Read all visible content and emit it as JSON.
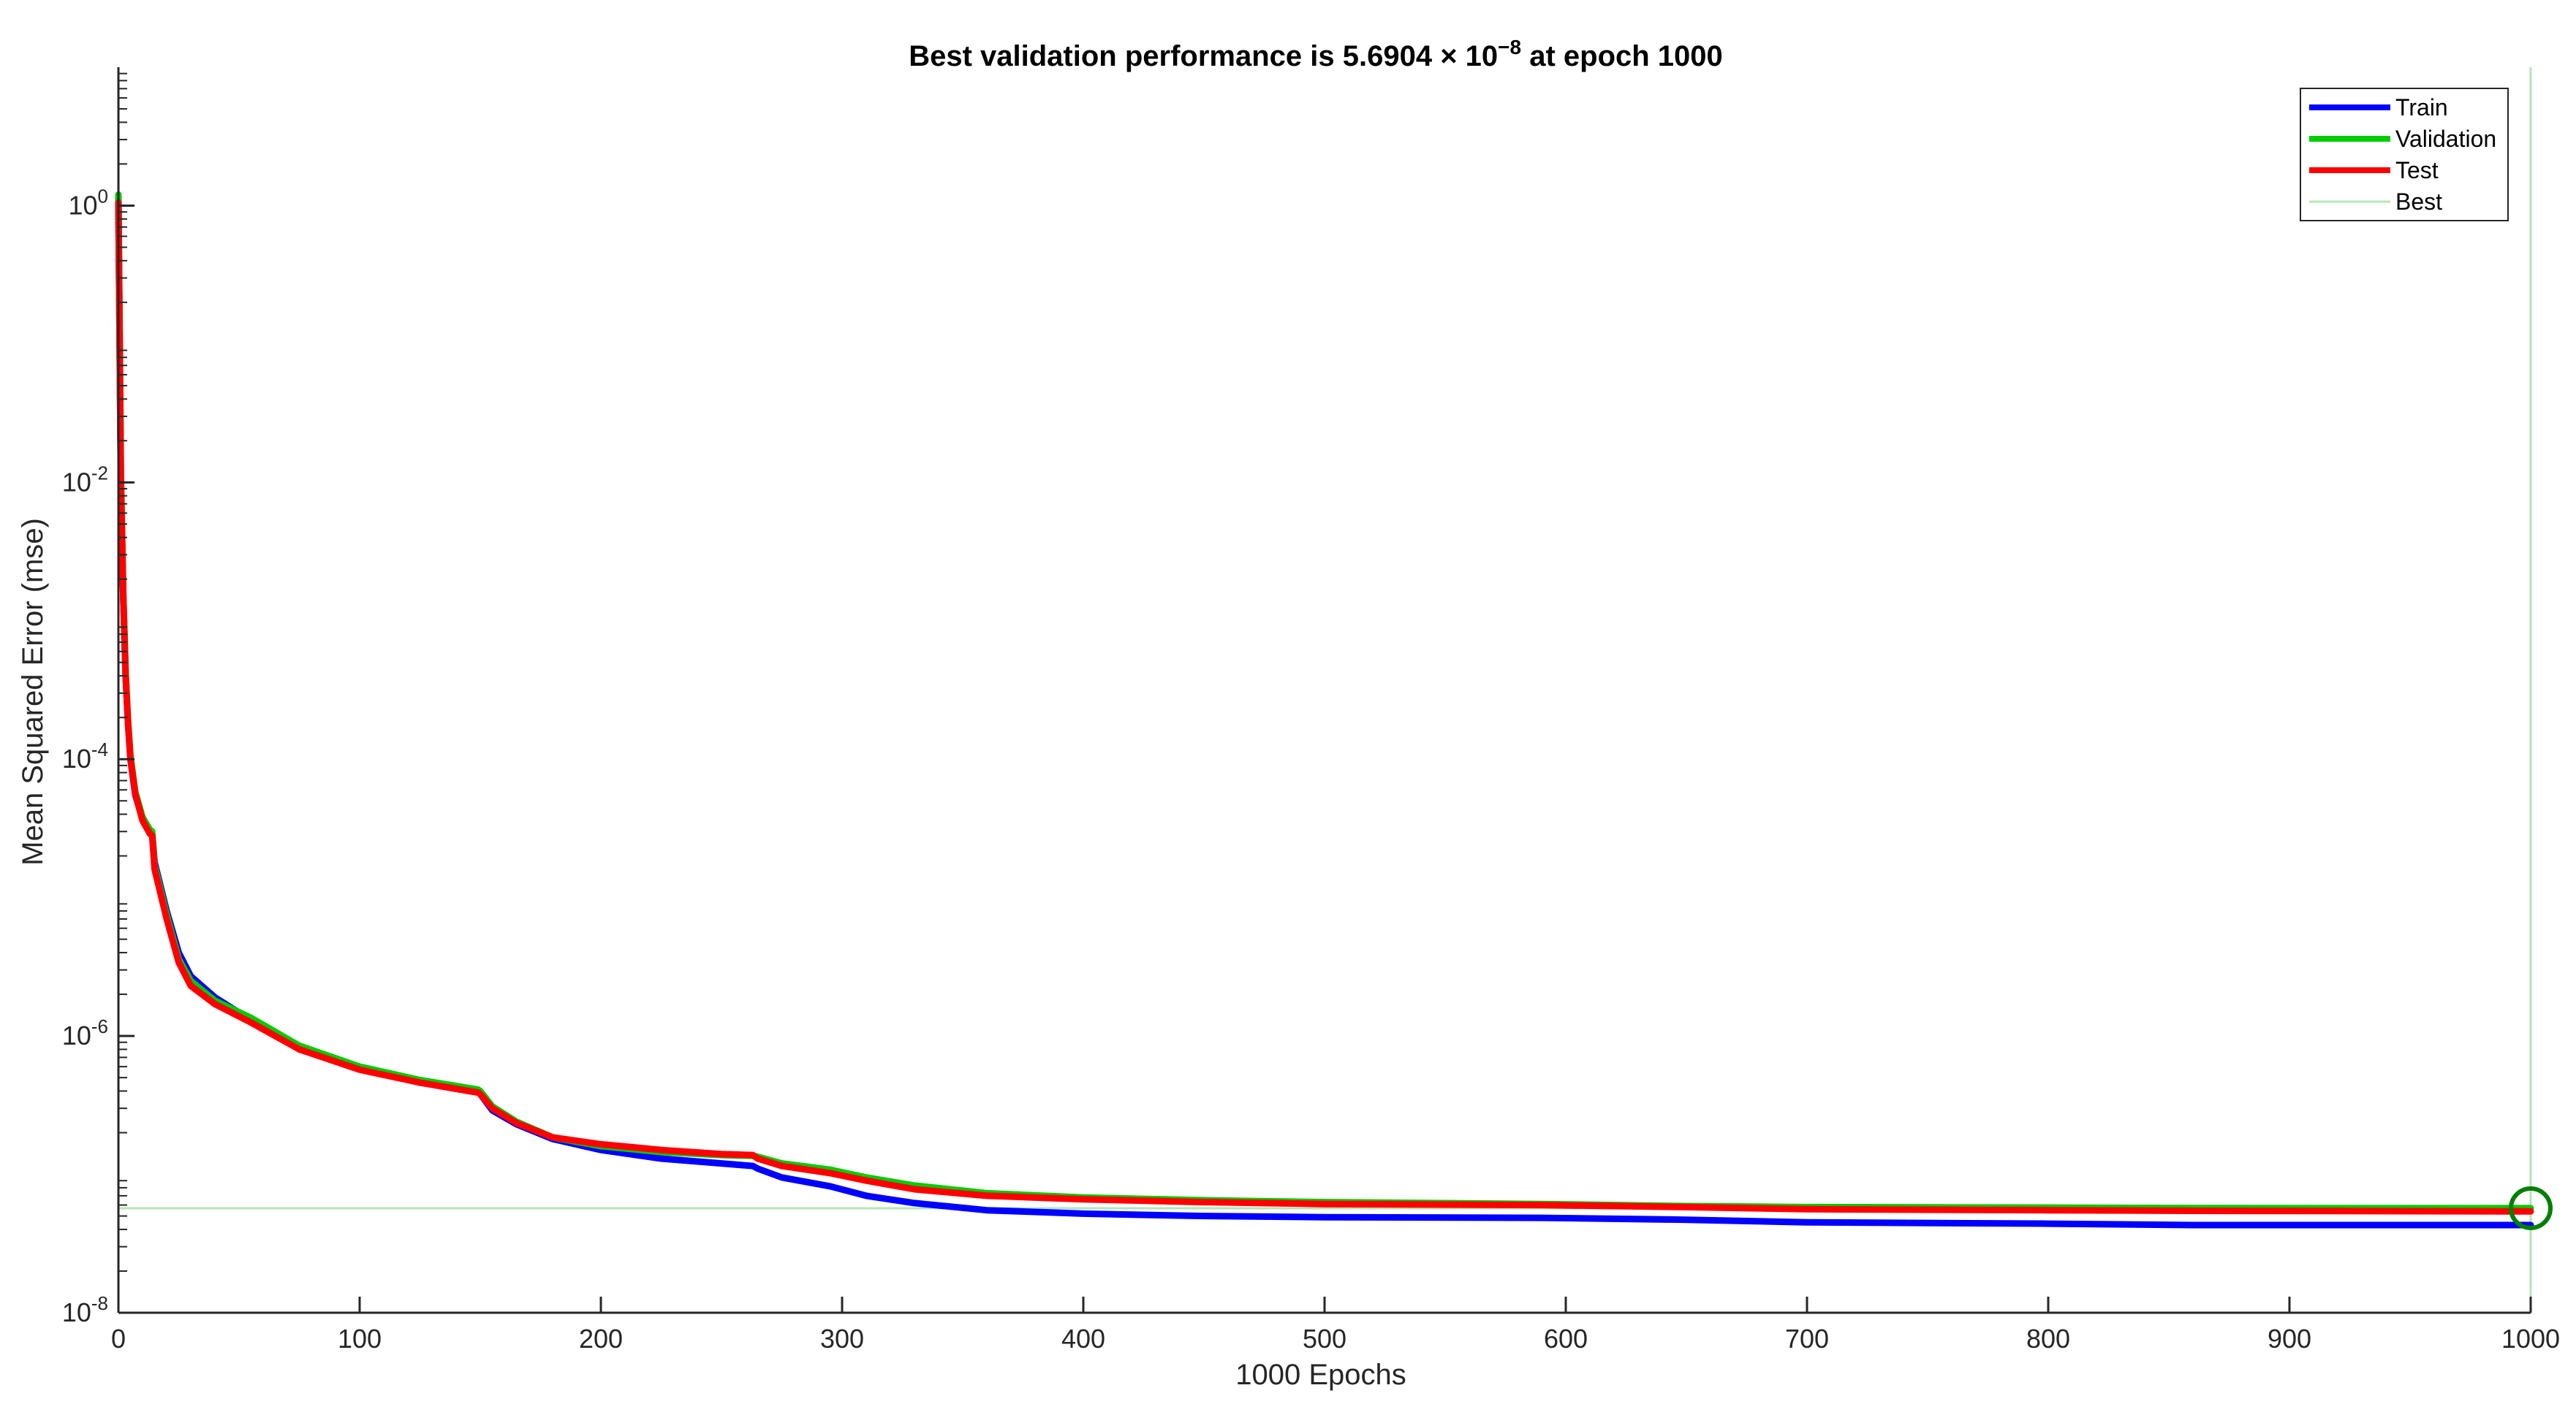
{
  "chart_data": {
    "type": "line",
    "title": {
      "prefix": "Best validation performance is 5.6904 × 10",
      "superscript": "−8",
      "suffix": " at epoch 1000"
    },
    "xlabel": "1000 Epochs",
    "ylabel": "Mean Squared Error  (mse)",
    "xlim": [
      0,
      1000
    ],
    "ylim": [
      1e-08,
      10
    ],
    "yscale": "log",
    "grid": false,
    "legend_position": "top-right",
    "x_ticks": [
      0,
      100,
      200,
      300,
      400,
      500,
      600,
      700,
      800,
      900,
      1000
    ],
    "y_ticks": [
      {
        "value": 1,
        "base": "10",
        "exp": "0"
      },
      {
        "value": 0.01,
        "base": "10",
        "exp": "-2"
      },
      {
        "value": 0.0001,
        "base": "10",
        "exp": "-4"
      },
      {
        "value": 1e-06,
        "base": "10",
        "exp": "-6"
      },
      {
        "value": 1e-08,
        "base": "10",
        "exp": "-8"
      }
    ],
    "series": [
      {
        "name": "Train",
        "color": "#0000ff",
        "x": [
          0,
          1,
          2,
          3,
          4,
          5,
          7,
          10,
          13,
          14,
          15,
          20,
          25,
          30,
          40,
          55,
          75,
          100,
          125,
          149,
          150,
          155,
          165,
          180,
          200,
          225,
          250,
          263,
          265,
          275,
          295,
          310,
          330,
          360,
          400,
          450,
          500,
          590,
          650,
          700,
          800,
          860,
          1000
        ],
        "y": [
          1.1,
          0.01,
          0.0015,
          0.0004,
          0.00018,
          0.0001,
          5.5e-05,
          3.7e-05,
          3e-05,
          2.9e-05,
          1.8e-05,
          8e-06,
          4e-06,
          2.7e-06,
          1.9e-06,
          1.3e-06,
          8e-07,
          5.8e-07,
          4.6e-07,
          3.9e-07,
          3.8e-07,
          2.9e-07,
          2.3e-07,
          1.8e-07,
          1.5e-07,
          1.3e-07,
          1.2e-07,
          1.15e-07,
          1.1e-07,
          9.5e-08,
          8.2e-08,
          7e-08,
          6.2e-08,
          5.5e-08,
          5.2e-08,
          5e-08,
          4.9e-08,
          4.85e-08,
          4.7e-08,
          4.5e-08,
          4.4e-08,
          4.3e-08,
          4.3e-08
        ]
      },
      {
        "name": "Validation",
        "color": "#00cc00",
        "x": [
          0,
          1,
          2,
          3,
          4,
          5,
          7,
          10,
          13,
          14,
          15,
          20,
          25,
          30,
          40,
          55,
          75,
          100,
          125,
          149,
          150,
          155,
          165,
          180,
          200,
          225,
          250,
          263,
          265,
          275,
          295,
          310,
          330,
          360,
          400,
          450,
          500,
          590,
          650,
          700,
          800,
          860,
          1000
        ],
        "y": [
          1.2,
          0.012,
          0.0016,
          0.00042,
          0.00019,
          0.000105,
          5.8e-05,
          3.8e-05,
          3.1e-05,
          3e-05,
          1.7e-05,
          7.5e-06,
          3.6e-06,
          2.5e-06,
          1.8e-06,
          1.35e-06,
          8.5e-07,
          6e-07,
          4.8e-07,
          4.1e-07,
          4e-07,
          3.1e-07,
          2.4e-07,
          1.85e-07,
          1.6e-07,
          1.45e-07,
          1.38e-07,
          1.36e-07,
          1.34e-07,
          1.2e-07,
          1.08e-07,
          9.5e-08,
          8.3e-08,
          7.3e-08,
          6.8e-08,
          6.5e-08,
          6.3e-08,
          6.1e-08,
          5.9e-08,
          5.8e-08,
          5.75e-08,
          5.7e-08,
          5.69e-08
        ]
      },
      {
        "name": "Test",
        "color": "#ff0000",
        "x": [
          0,
          1,
          2,
          3,
          4,
          5,
          7,
          10,
          13,
          14,
          15,
          20,
          25,
          30,
          40,
          55,
          75,
          100,
          125,
          149,
          150,
          155,
          165,
          180,
          200,
          225,
          250,
          263,
          265,
          275,
          295,
          310,
          330,
          360,
          400,
          450,
          500,
          590,
          650,
          700,
          800,
          860,
          1000
        ],
        "y": [
          1.05,
          0.011,
          0.0015,
          0.0004,
          0.00018,
          0.0001,
          5.6e-05,
          3.6e-05,
          2.9e-05,
          2.8e-05,
          1.6e-05,
          7e-06,
          3.4e-06,
          2.3e-06,
          1.7e-06,
          1.25e-06,
          8e-07,
          5.7e-07,
          4.6e-07,
          3.9e-07,
          3.8e-07,
          3e-07,
          2.35e-07,
          1.85e-07,
          1.65e-07,
          1.5e-07,
          1.4e-07,
          1.38e-07,
          1.3e-07,
          1.15e-07,
          1.02e-07,
          9e-08,
          7.8e-08,
          7e-08,
          6.6e-08,
          6.3e-08,
          6.1e-08,
          6e-08,
          5.8e-08,
          5.6e-08,
          5.5e-08,
          5.45e-08,
          5.4e-08
        ]
      }
    ],
    "best": {
      "name": "Best",
      "epoch": 1000,
      "value": 5.6904e-08,
      "color": "#b5e6b5",
      "marker_color": "#008000"
    },
    "legend": [
      {
        "label": "Train",
        "color": "#0000ff"
      },
      {
        "label": "Validation",
        "color": "#00cc00"
      },
      {
        "label": "Test",
        "color": "#ff0000"
      },
      {
        "label": "Best",
        "color": "#b5e6b5"
      }
    ]
  }
}
